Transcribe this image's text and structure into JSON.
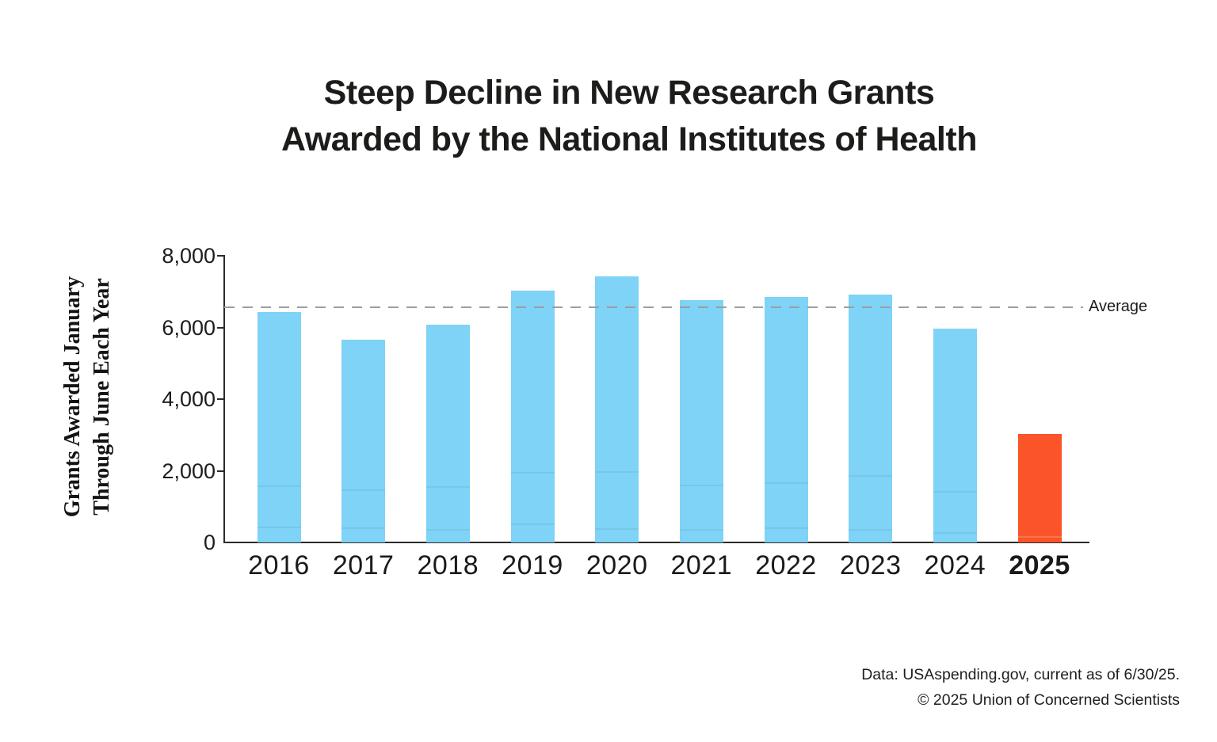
{
  "title": {
    "line1": "Steep Decline in New Research Grants",
    "line2": "Awarded by the National Institutes of Health"
  },
  "y_axis_label": {
    "line1": "Grants Awarded January",
    "line2": "Through June Each Year"
  },
  "average_label": "Average",
  "footer": {
    "line1": "Data: USAspending.gov, current as of 6/30/25.",
    "line2": "© 2025 Union of Concerned Scientists"
  },
  "colors": {
    "bar": "#7ED3F6",
    "bar_highlight": "#FA5428",
    "axis": "#2B2B2B",
    "average_line": "#9E9E9E",
    "text": "#1D1D1B"
  },
  "chart_data": {
    "type": "bar",
    "title": "Steep Decline in New Research Grants Awarded by the National Institutes of Health",
    "ylabel": "Grants Awarded January Through June Each Year",
    "xlabel": "",
    "categories": [
      "2016",
      "2017",
      "2018",
      "2019",
      "2020",
      "2021",
      "2022",
      "2023",
      "2024",
      "2025"
    ],
    "values": [
      6430,
      5660,
      6080,
      7020,
      7420,
      6760,
      6840,
      6920,
      5970,
      3020
    ],
    "highlight_index": 9,
    "highlight_meaning": "2025 shown in orange to emphasize steep decline",
    "average_line_value": 6565,
    "ylim": [
      0,
      8000
    ],
    "yticks": [
      0,
      2000,
      4000,
      6000,
      8000
    ],
    "ytick_labels": [
      "0",
      "2,000",
      "4,000",
      "6,000",
      "8,000"
    ],
    "grid": false,
    "legend": false,
    "segment_lines": [
      [
        440,
        1600
      ],
      [
        420,
        1470
      ],
      [
        380,
        1560
      ],
      [
        530,
        1970
      ],
      [
        400,
        1990
      ],
      [
        370,
        1620
      ],
      [
        420,
        1680
      ],
      [
        370,
        1880
      ],
      [
        290,
        1440
      ],
      [
        180
      ]
    ]
  }
}
